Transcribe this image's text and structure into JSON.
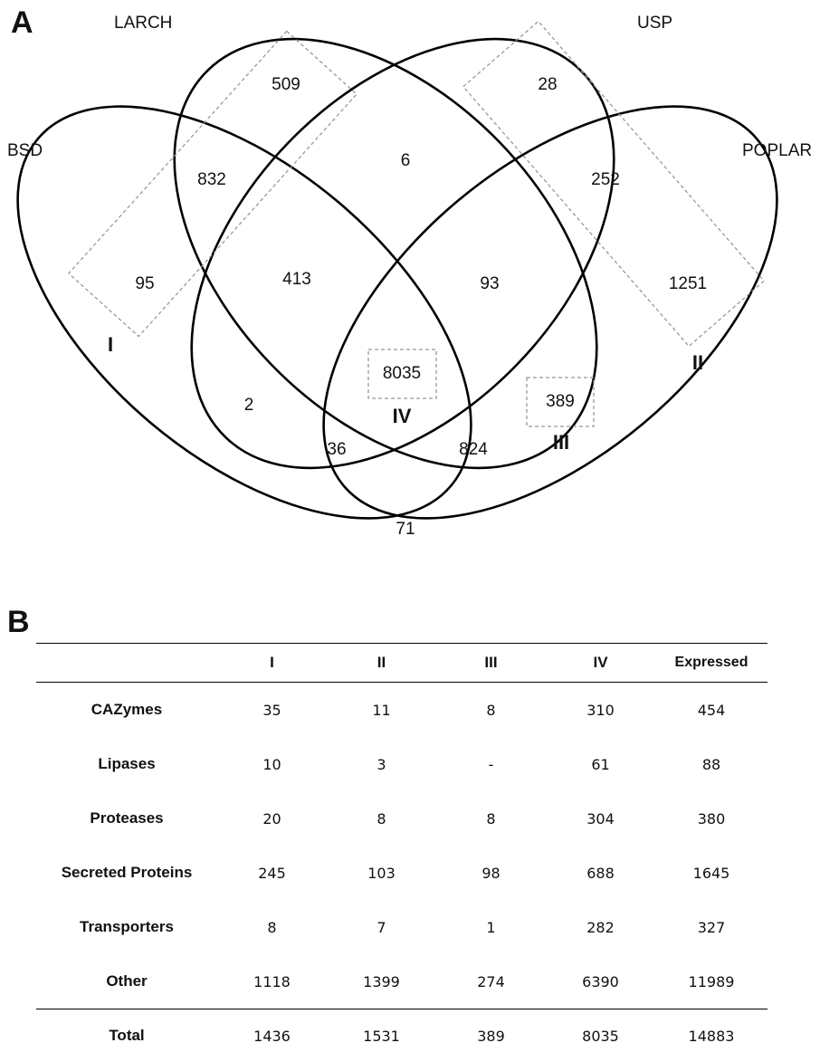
{
  "panels": {
    "a": "A",
    "b": "B"
  },
  "venn": {
    "sets": [
      "BSD",
      "LARCH",
      "USP",
      "POPLAR"
    ],
    "regions": [
      {
        "id": "larch-only",
        "value": "509"
      },
      {
        "id": "usp-only",
        "value": "28"
      },
      {
        "id": "larch-usp",
        "value": "6"
      },
      {
        "id": "bsd-larch",
        "value": "832"
      },
      {
        "id": "usp-poplar",
        "value": "252"
      },
      {
        "id": "bsd-only",
        "value": "95"
      },
      {
        "id": "bsd-larch-usp",
        "value": "413"
      },
      {
        "id": "larch-usp-poplar",
        "value": "93"
      },
      {
        "id": "poplar-only",
        "value": "1251"
      },
      {
        "id": "all-four",
        "value": "8035"
      },
      {
        "id": "bsd-usp",
        "value": "2"
      },
      {
        "id": "larch-poplar",
        "value": "389"
      },
      {
        "id": "bsd-usp-poplar",
        "value": "36"
      },
      {
        "id": "bsd-larch-poplar",
        "value": "824"
      },
      {
        "id": "bsd-poplar",
        "value": "71"
      }
    ],
    "groups": [
      "I",
      "II",
      "III",
      "IV"
    ]
  },
  "table": {
    "headers": [
      "",
      "I",
      "II",
      "III",
      "IV",
      "Expressed"
    ],
    "rows": [
      [
        "CAZymes",
        "35",
        "11",
        "8",
        "310",
        "454"
      ],
      [
        "Lipases",
        "10",
        "3",
        "-",
        "61",
        "88"
      ],
      [
        "Proteases",
        "20",
        "8",
        "8",
        "304",
        "380"
      ],
      [
        "Secreted Proteins",
        "245",
        "103",
        "98",
        "688",
        "1645"
      ],
      [
        "Transporters",
        "8",
        "7",
        "1",
        "282",
        "327"
      ],
      [
        "Other",
        "1118",
        "1399",
        "274",
        "6390",
        "11989"
      ]
    ],
    "total": [
      "Total",
      "1436",
      "1531",
      "389",
      "8035",
      "14883"
    ]
  }
}
